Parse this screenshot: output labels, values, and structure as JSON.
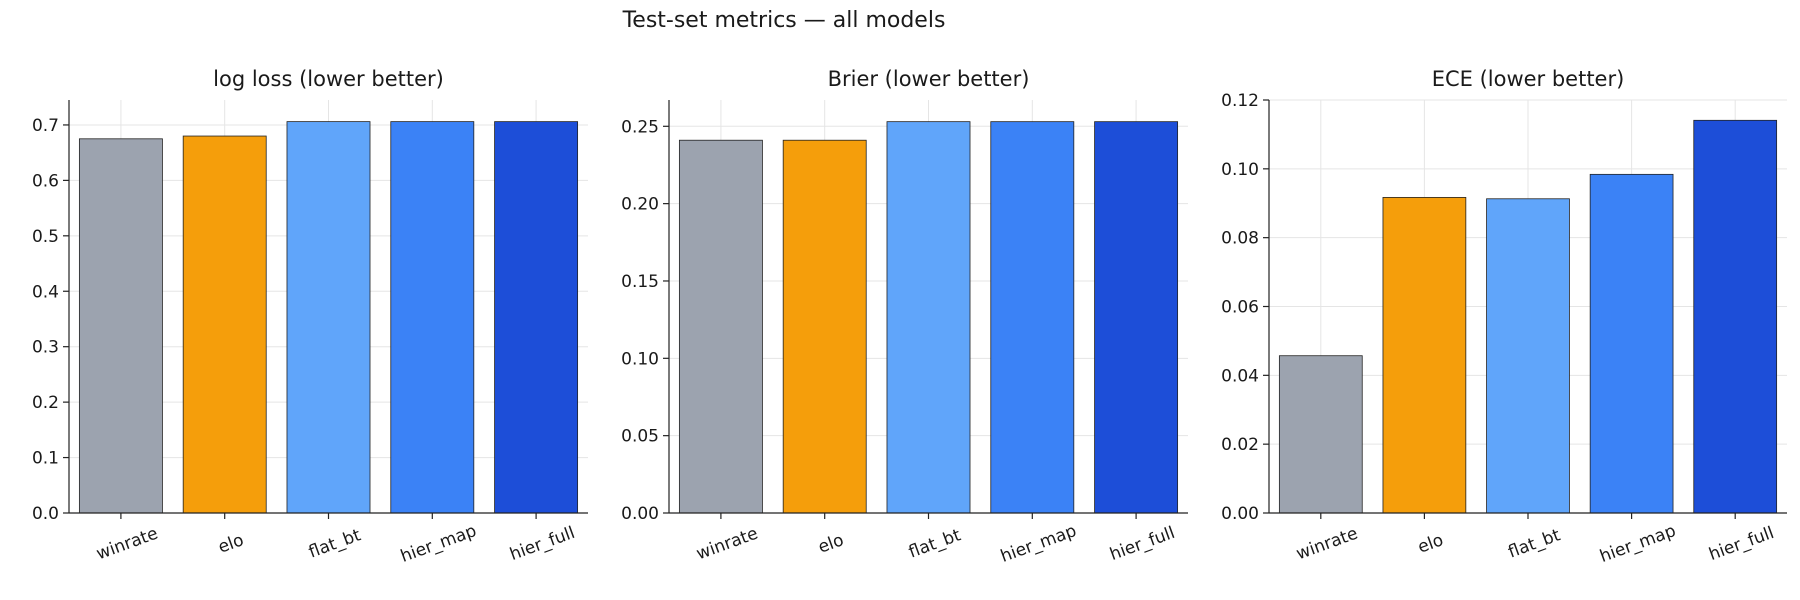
{
  "figure": {
    "title": "Test-set metrics — all models"
  },
  "colors": {
    "winrate": "#9ca3af",
    "elo": "#f59e0b",
    "flat_bt": "#60a5fa",
    "hier_map": "#3b82f6",
    "hier_full": "#1d4ed8"
  },
  "chart_data": [
    {
      "type": "bar",
      "title": "log loss (lower better)",
      "categories": [
        "winrate",
        "elo",
        "flat_bt",
        "hier_map",
        "hier_full"
      ],
      "values": [
        0.675,
        0.68,
        0.706,
        0.706,
        0.706
      ],
      "ylim": [
        0,
        0.745
      ],
      "yticks": [
        0.0,
        0.1,
        0.2,
        0.3,
        0.4,
        0.5,
        0.6,
        0.7
      ],
      "ytick_labels": [
        "0.0",
        "0.1",
        "0.2",
        "0.3",
        "0.4",
        "0.5",
        "0.6",
        "0.7"
      ],
      "grid": true
    },
    {
      "type": "bar",
      "title": "Brier (lower better)",
      "categories": [
        "winrate",
        "elo",
        "flat_bt",
        "hier_map",
        "hier_full"
      ],
      "values": [
        0.241,
        0.241,
        0.253,
        0.253,
        0.253
      ],
      "ylim": [
        0,
        0.267
      ],
      "yticks": [
        0.0,
        0.05,
        0.1,
        0.15,
        0.2,
        0.25
      ],
      "ytick_labels": [
        "0.00",
        "0.05",
        "0.10",
        "0.15",
        "0.20",
        "0.25"
      ],
      "grid": true
    },
    {
      "type": "bar",
      "title": "ECE (lower better)",
      "categories": [
        "winrate",
        "elo",
        "flat_bt",
        "hier_map",
        "hier_full"
      ],
      "values": [
        0.0457,
        0.0917,
        0.0913,
        0.0984,
        0.1141
      ],
      "ylim": [
        0,
        0.12
      ],
      "yticks": [
        0.0,
        0.02,
        0.04,
        0.06,
        0.08,
        0.1,
        0.12
      ],
      "ytick_labels": [
        "0.00",
        "0.02",
        "0.04",
        "0.06",
        "0.08",
        "0.10",
        "0.12"
      ],
      "grid": true
    }
  ]
}
